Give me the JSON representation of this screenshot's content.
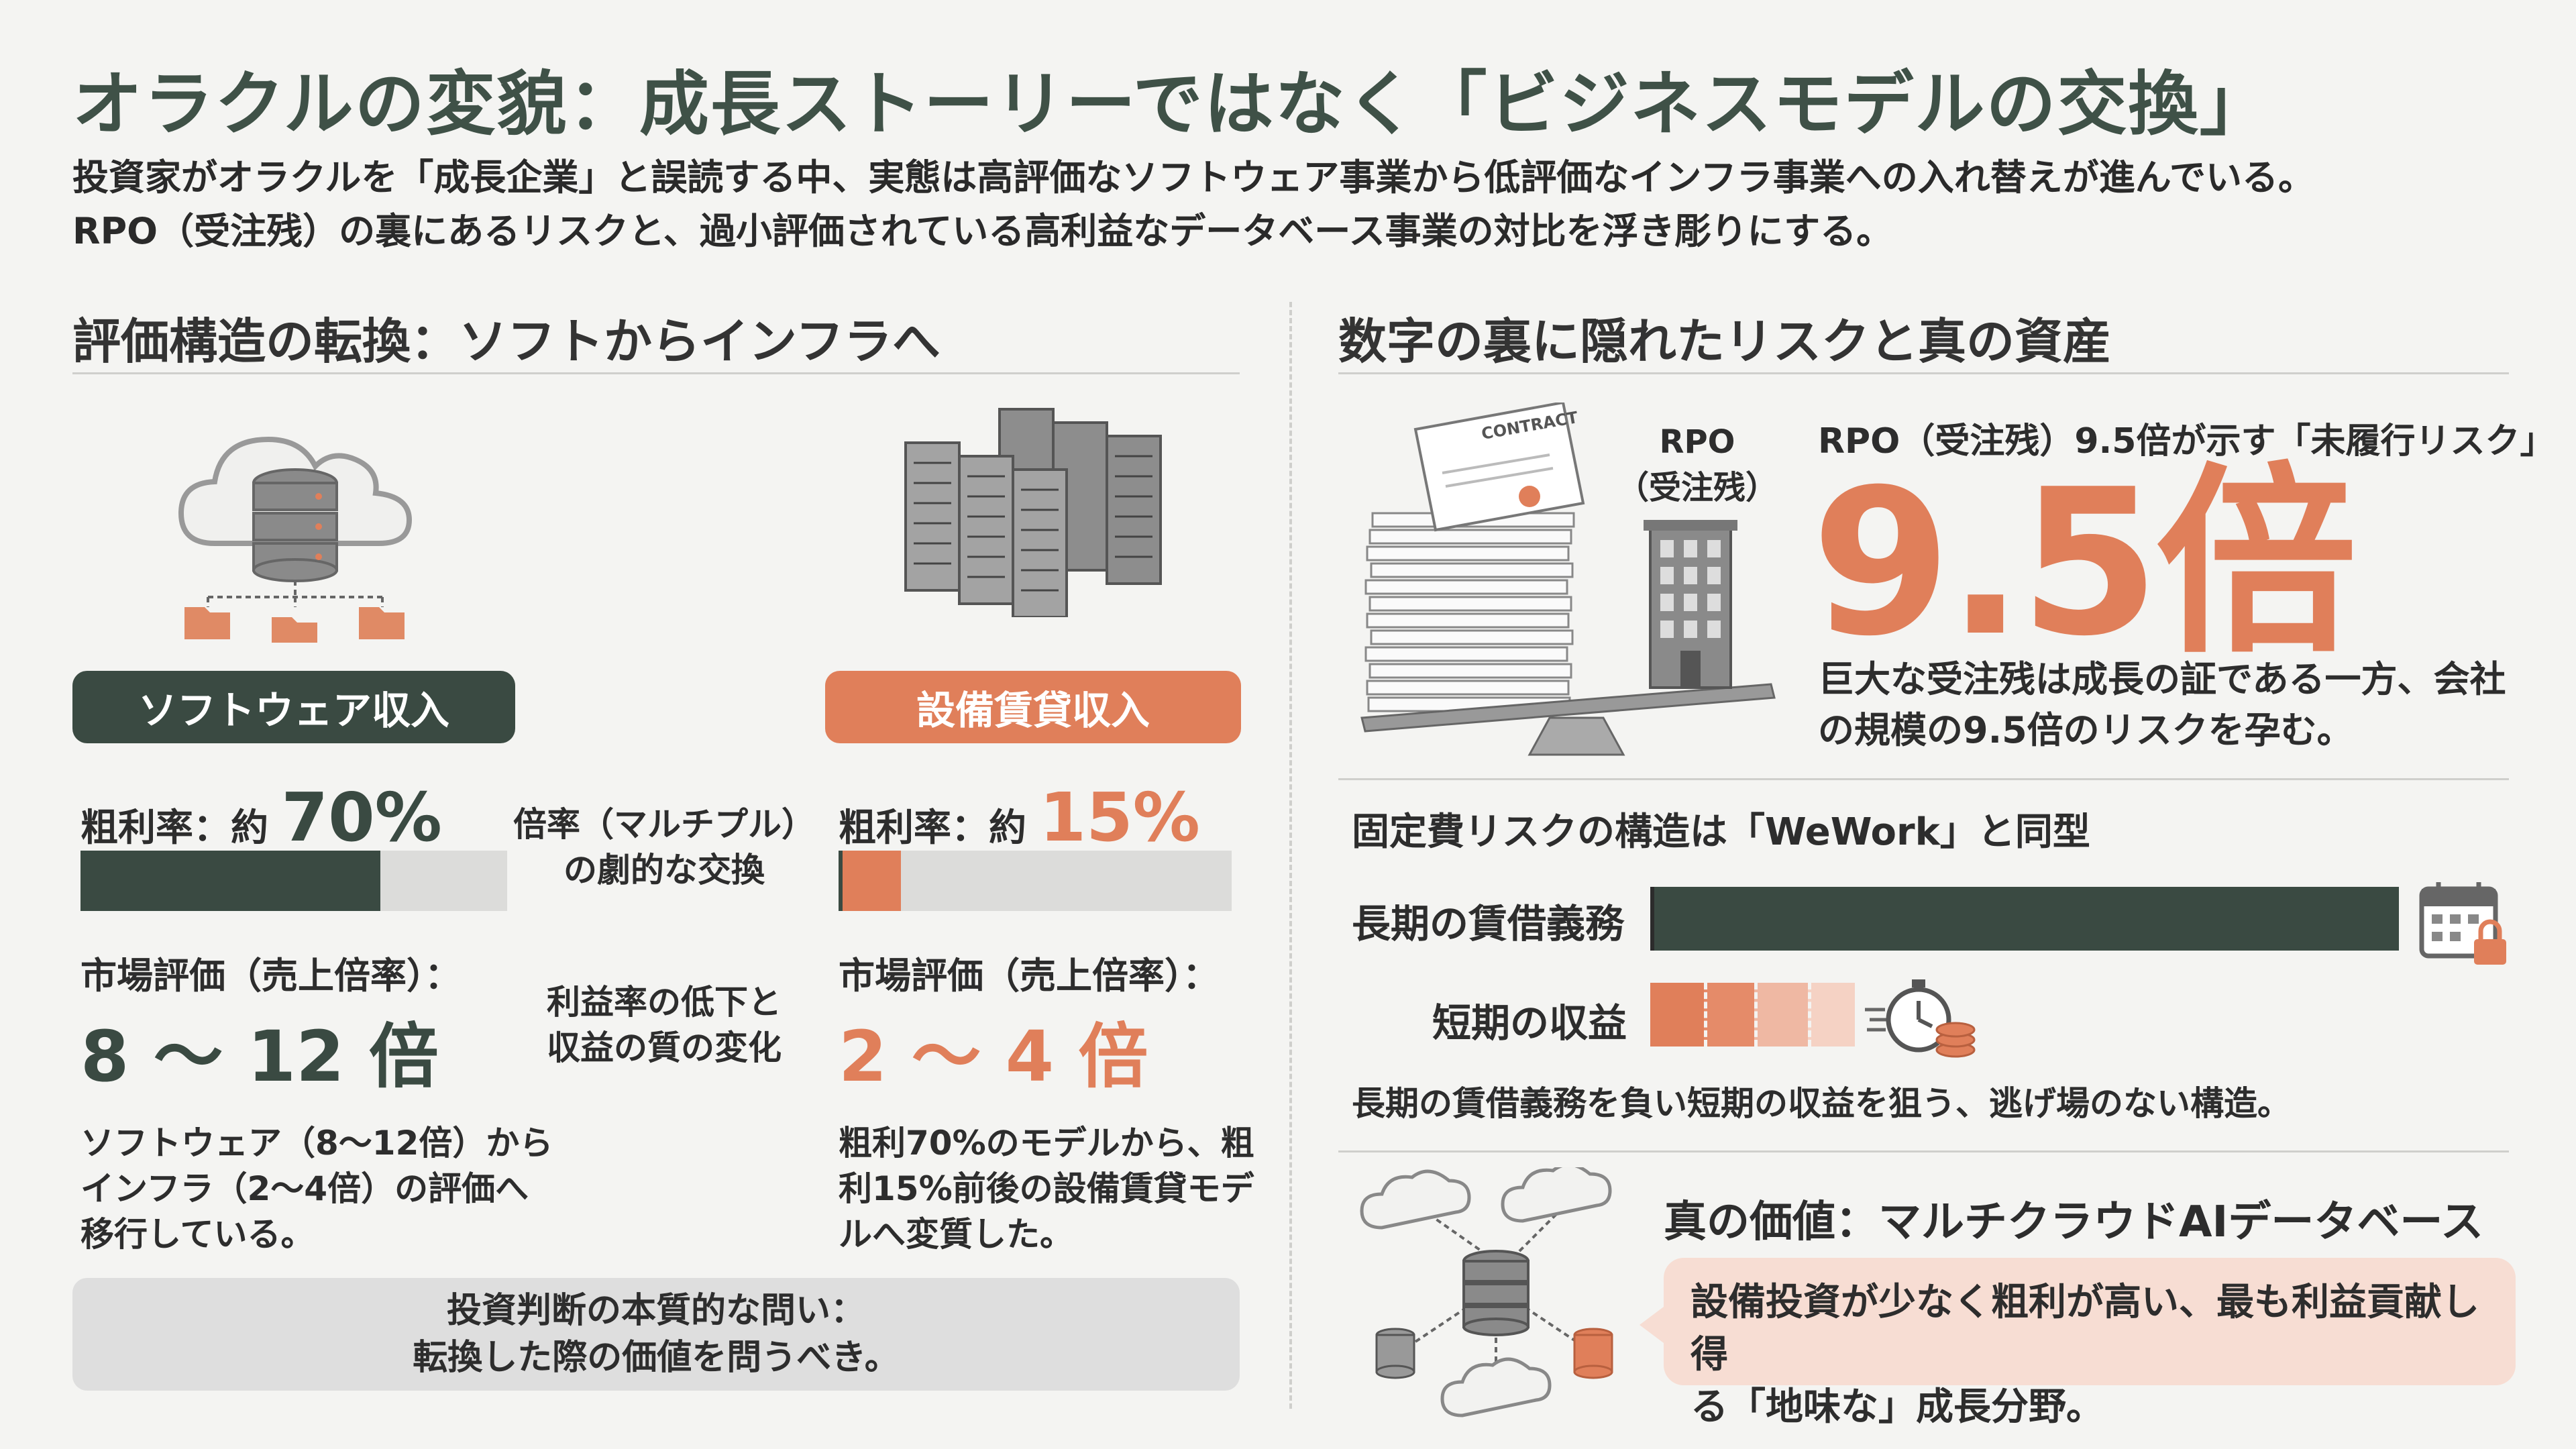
{
  "header": {
    "title": "オラクルの変貌：成長ストーリーではなく「ビジネスモデルの交換」",
    "subtitle_line1": "投資家がオラクルを「成長企業」と誤読する中、実態は高評価なソフトウェア事業から低評価なインフラ事業への入れ替えが進んでいる。",
    "subtitle_line2": "RPO（受注残）の裏にあるリスクと、過小評価されている高利益なデータベース事業の対比を浮き彫りにする。"
  },
  "left": {
    "heading": "評価構造の転換：ソフトからインフラへ",
    "software": {
      "label": "ソフトウェア収入",
      "margin_label": "粗利率：約",
      "margin_value": "70%",
      "margin_fraction": 0.7,
      "valuation_label": "市場評価（売上倍率）：",
      "valuation_value": "8 ～ 12 倍",
      "note_line1": "ソフトウェア（8～12倍）から",
      "note_line2": "インフラ（2～4倍）の評価へ",
      "note_line3": "移行している。"
    },
    "middle": {
      "text1_line1": "倍率（マルチプル）",
      "text1_line2": "の劇的な交換",
      "text2_line1": "利益率の低下と",
      "text2_line2": "収益の質の変化"
    },
    "infra": {
      "label": "設備賃貸収入",
      "margin_label": "粗利率：約",
      "margin_value": "15%",
      "margin_fraction": 0.15,
      "valuation_label": "市場評価（売上倍率）：",
      "valuation_value": "2 ～ 4 倍",
      "note_line1": "粗利70%のモデルから、粗",
      "note_line2": "利15%前後の設備賃貸モデ",
      "note_line3": "ルへ変質した。"
    },
    "question_line1": "投資判断の本質的な問い：",
    "question_line2": "転換した際の価値を問うべき。"
  },
  "right": {
    "heading": "数字の裏に隠れたリスクと真の資産",
    "rpo": {
      "contract_text": "CONTRACT",
      "label_line1": "RPO",
      "label_line2": "（受注残）",
      "title": "RPO（受注残）9.5倍が示す「未履行リスク」",
      "big_value": "9.5倍",
      "desc_line1": "巨大な受注残は成長の証である一方、会社",
      "desc_line2": "の規模の9.5倍のリスクを孕む。"
    },
    "fixed": {
      "title": "固定費リスクの構造は「WeWork」と同型",
      "long_label": "長期の賃借義務",
      "short_label": "短期の収益",
      "note": "長期の賃借義務を負い短期の収益を狙う、逃げ場のない構造。"
    },
    "value": {
      "title": "真の価値：マルチクラウドAIデータベース",
      "bubble_line1": "設備投資が少なく粗利が高い、最も利益貢献し得",
      "bubble_line2": "る「地味な」成長分野。"
    }
  },
  "colors": {
    "dark": "#3a4a42",
    "orange": "#e07f5a",
    "title": "#3f5147"
  }
}
